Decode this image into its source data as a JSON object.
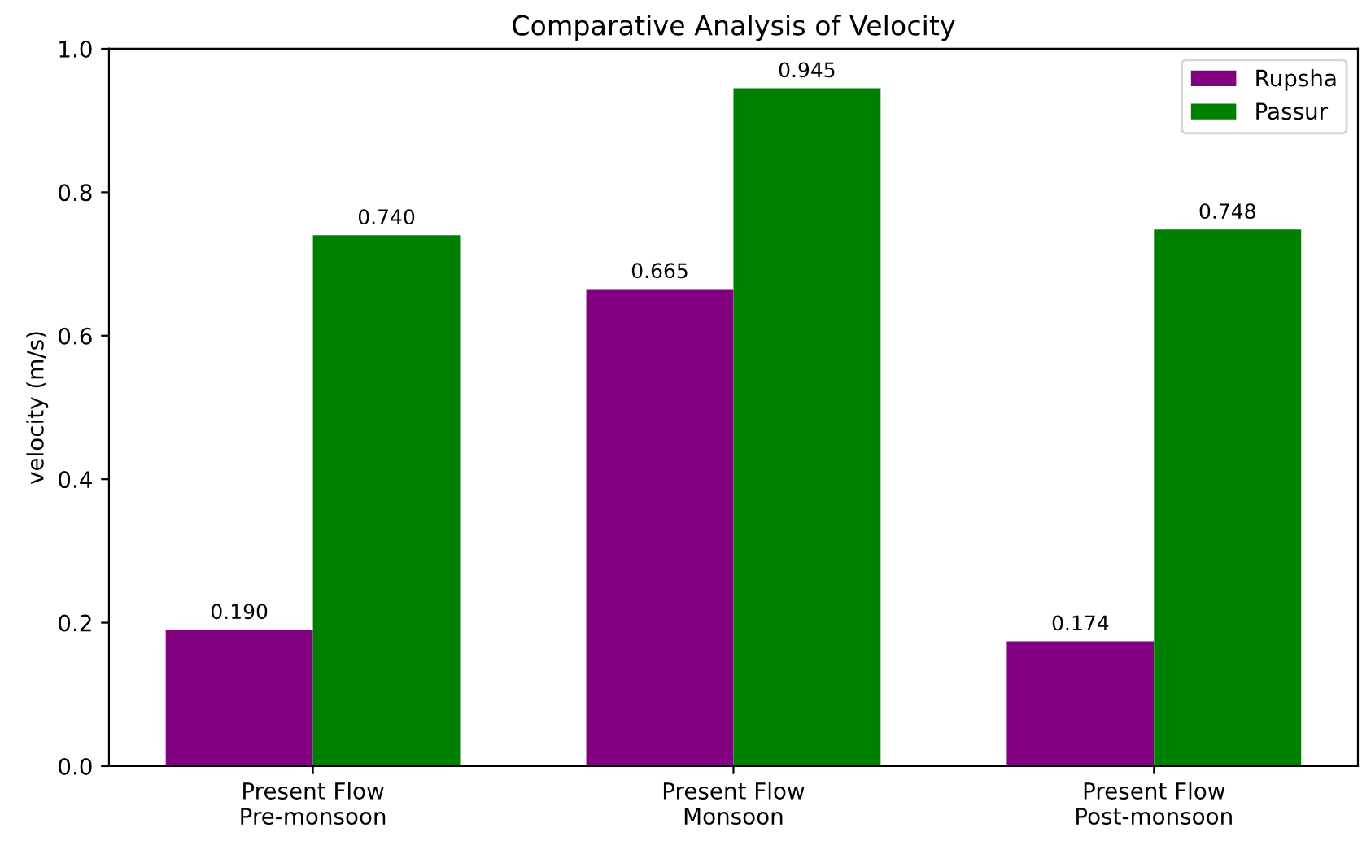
{
  "chart_data": {
    "type": "bar",
    "title": "Comparative Analysis of Velocity",
    "ylabel": "velocity (m/s)",
    "categories": [
      "Present Flow\nPre-monsoon",
      "Present Flow\nMonsoon",
      "Present Flow\nPost-monsoon"
    ],
    "series": [
      {
        "name": "Rupsha",
        "color": "#800080",
        "values": [
          0.19,
          0.665,
          0.174
        ],
        "value_labels": [
          "0.190",
          "0.665",
          "0.174"
        ]
      },
      {
        "name": "Passur",
        "color": "#008000",
        "values": [
          0.74,
          0.945,
          0.748
        ],
        "value_labels": [
          "0.740",
          "0.945",
          "0.748"
        ]
      }
    ],
    "ylim": [
      0,
      1.0
    ],
    "yticks": [
      {
        "value": 0,
        "label": "0.0"
      },
      {
        "value": 0.2,
        "label": "0.2"
      },
      {
        "value": 0.4,
        "label": "0.4"
      },
      {
        "value": 0.6,
        "label": "0.6"
      },
      {
        "value": 0.8,
        "label": "0.8"
      },
      {
        "value": 1.0,
        "label": "1.0"
      }
    ],
    "grid": false,
    "legend": "top right"
  }
}
